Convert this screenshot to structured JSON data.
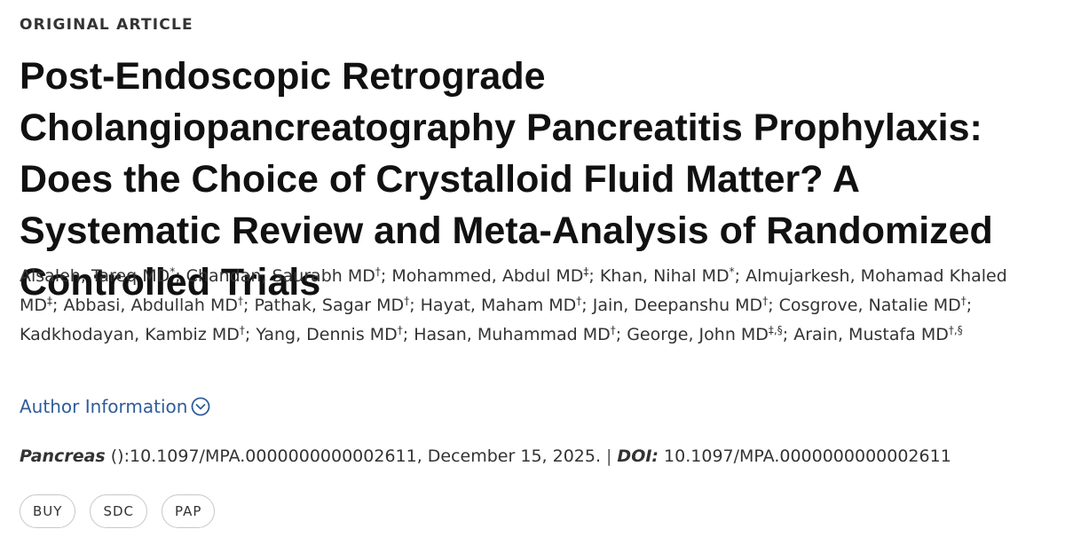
{
  "article": {
    "type_label": "ORIGINAL ARTICLE",
    "title": "Post-Endoscopic Retrograde Cholangiopancreatography Pancreatitis Prophylaxis: Does the Choice of Crystalloid Fluid Matter? A Systematic Review and Meta-Analysis of Randomized Controlled Trials"
  },
  "authors": [
    {
      "name": "Alsaleh, Tareq MD",
      "marks": "*"
    },
    {
      "name": "Chandan, Saurabh MD",
      "marks": "†"
    },
    {
      "name": "Mohammed, Abdul MD",
      "marks": "‡"
    },
    {
      "name": "Khan, Nihal MD",
      "marks": "*"
    },
    {
      "name": "Almujarkesh, Mohamad Khaled MD",
      "marks": "‡"
    },
    {
      "name": "Abbasi, Abdullah MD",
      "marks": "†"
    },
    {
      "name": "Pathak, Sagar MD",
      "marks": "†"
    },
    {
      "name": "Hayat, Maham MD",
      "marks": "†"
    },
    {
      "name": "Jain, Deepanshu MD",
      "marks": "†"
    },
    {
      "name": "Cosgrove, Natalie MD",
      "marks": "†"
    },
    {
      "name": "Kadkhodayan, Kambiz MD",
      "marks": "†"
    },
    {
      "name": "Yang, Dennis MD",
      "marks": "†"
    },
    {
      "name": "Hasan, Muhammad MD",
      "marks": "†"
    },
    {
      "name": "George, John MD",
      "marks": "‡,§"
    },
    {
      "name": "Arain, Mustafa MD",
      "marks": "†,§"
    }
  ],
  "author_info": {
    "label": "Author Information",
    "icon": "chevron-down-circle-icon",
    "color": "#2f5d9a"
  },
  "citation": {
    "journal": "Pancreas",
    "details": " ():10.1097/MPA.0000000000002611, December 15, 2025.",
    "separator": "|",
    "doi_label": "DOI:",
    "doi_value": " 10.1097/MPA.0000000000002611"
  },
  "actions": [
    {
      "label": "BUY"
    },
    {
      "label": "SDC"
    },
    {
      "label": "PAP"
    }
  ]
}
